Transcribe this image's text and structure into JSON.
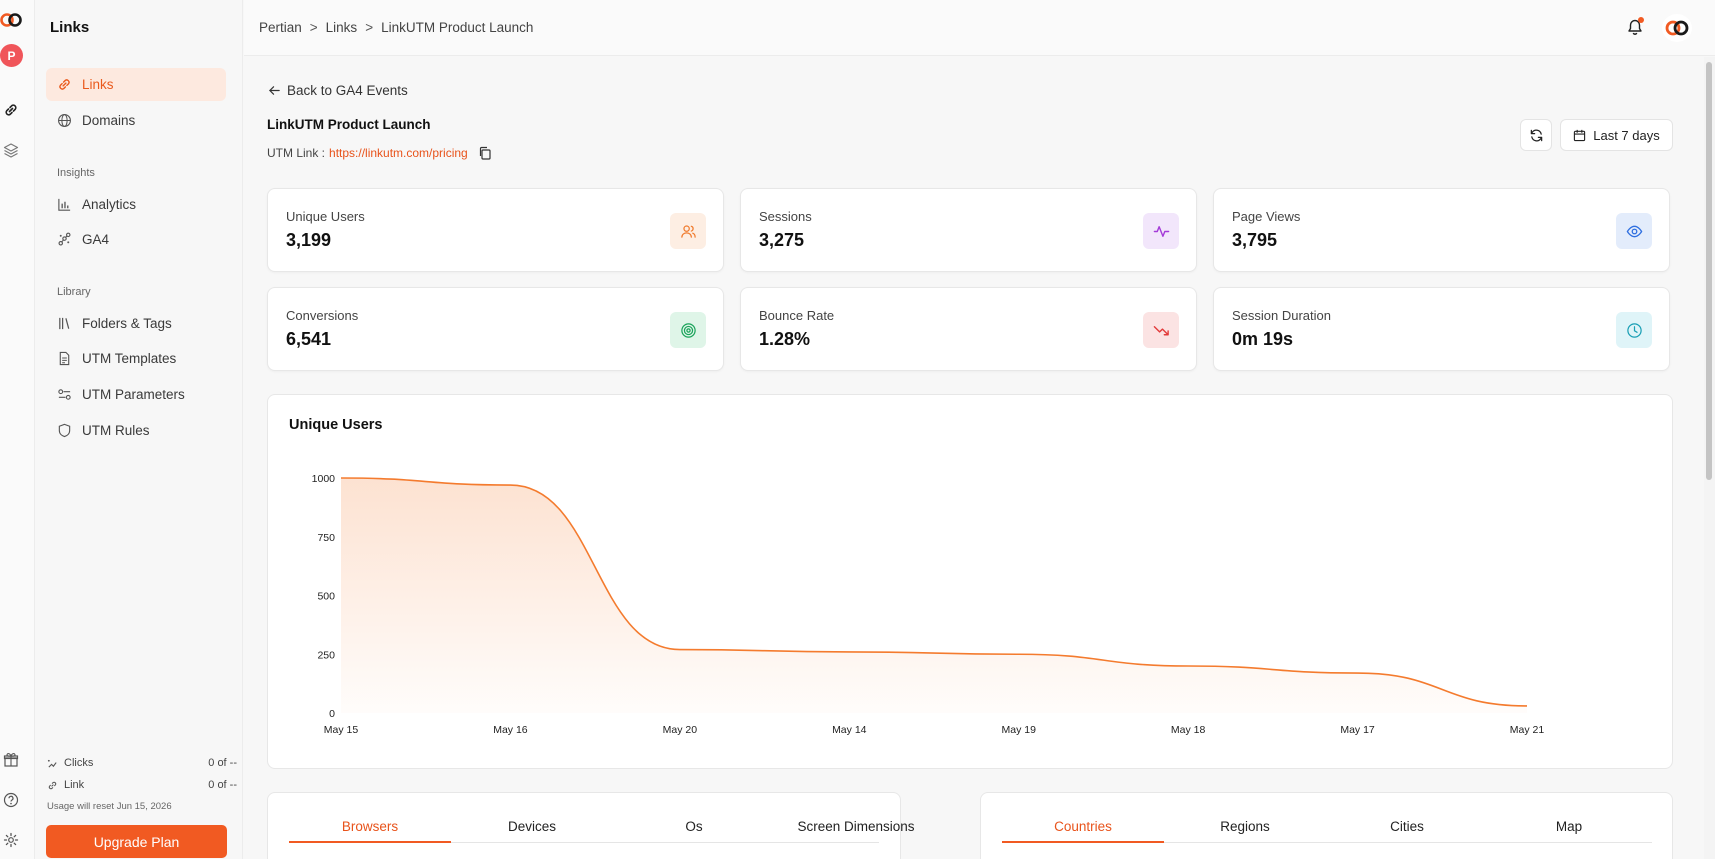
{
  "app": {
    "title": "Links"
  },
  "rail": {
    "avatar_letter": "P"
  },
  "sidebar": {
    "items": [
      {
        "label": "Links",
        "icon": "link-icon",
        "active": true
      },
      {
        "label": "Domains",
        "icon": "globe-icon",
        "active": false
      }
    ],
    "insights_label": "Insights",
    "insights": [
      {
        "label": "Analytics",
        "icon": "bar-chart-icon"
      },
      {
        "label": "GA4",
        "icon": "ga4-icon"
      }
    ],
    "library_label": "Library",
    "library": [
      {
        "label": "Folders & Tags",
        "icon": "folders-icon"
      },
      {
        "label": "UTM Templates",
        "icon": "document-icon"
      },
      {
        "label": "UTM Parameters",
        "icon": "parameters-icon"
      },
      {
        "label": "UTM Rules",
        "icon": "shield-icon"
      }
    ],
    "usage": [
      {
        "label": "Clicks",
        "value": "0 of --"
      },
      {
        "label": "Link",
        "value": "0 of --"
      }
    ],
    "usage_note": "Usage will reset Jun 15, 2026",
    "upgrade_label": "Upgrade Plan"
  },
  "header": {
    "breadcrumb": [
      "Pertian",
      "Links",
      "LinkUTM Product Launch"
    ],
    "separator": ">"
  },
  "page": {
    "back_label": "Back to GA4 Events",
    "title": "LinkUTM Product Launch",
    "utm_label": "UTM Link :",
    "utm_url": "https://linkutm.com/pricing",
    "date_range": "Last 7 days"
  },
  "stats": [
    {
      "label": "Unique Users",
      "value": "3,199",
      "icon": "users-icon",
      "color": "#f07a2c",
      "bg": "#fdeee3"
    },
    {
      "label": "Sessions",
      "value": "3,275",
      "icon": "activity-icon",
      "color": "#a43bd8",
      "bg": "#f2e6fb"
    },
    {
      "label": "Page Views",
      "value": "3,795",
      "icon": "eye-icon",
      "color": "#2f6fe0",
      "bg": "#e3ecfb"
    },
    {
      "label": "Conversions",
      "value": "6,541",
      "icon": "target-icon",
      "color": "#1aa35a",
      "bg": "#dff5e8"
    },
    {
      "label": "Bounce Rate",
      "value": "1.28%",
      "icon": "trending-down-icon",
      "color": "#e23b3b",
      "bg": "#fbe3e3"
    },
    {
      "label": "Session Duration",
      "value": "0m 19s",
      "icon": "clock-icon",
      "color": "#1a9fb5",
      "bg": "#dff4f8"
    }
  ],
  "chart_data": {
    "type": "area",
    "title": "Unique Users",
    "categories": [
      "May 15",
      "May 16",
      "May 20",
      "May 14",
      "May 19",
      "May 18",
      "May 17",
      "May 21"
    ],
    "values": [
      1000,
      970,
      270,
      260,
      250,
      200,
      170,
      30
    ],
    "yticks": [
      0,
      250,
      500,
      750,
      1000
    ],
    "ylim": [
      0,
      1000
    ],
    "xlabel": "",
    "ylabel": "",
    "color": "#f47b2e",
    "grid": false
  },
  "tabs_left": {
    "items": [
      "Browsers",
      "Devices",
      "Os",
      "Screen Dimensions"
    ],
    "active": 0
  },
  "tabs_right": {
    "items": [
      "Countries",
      "Regions",
      "Cities",
      "Map"
    ],
    "active": 0
  }
}
